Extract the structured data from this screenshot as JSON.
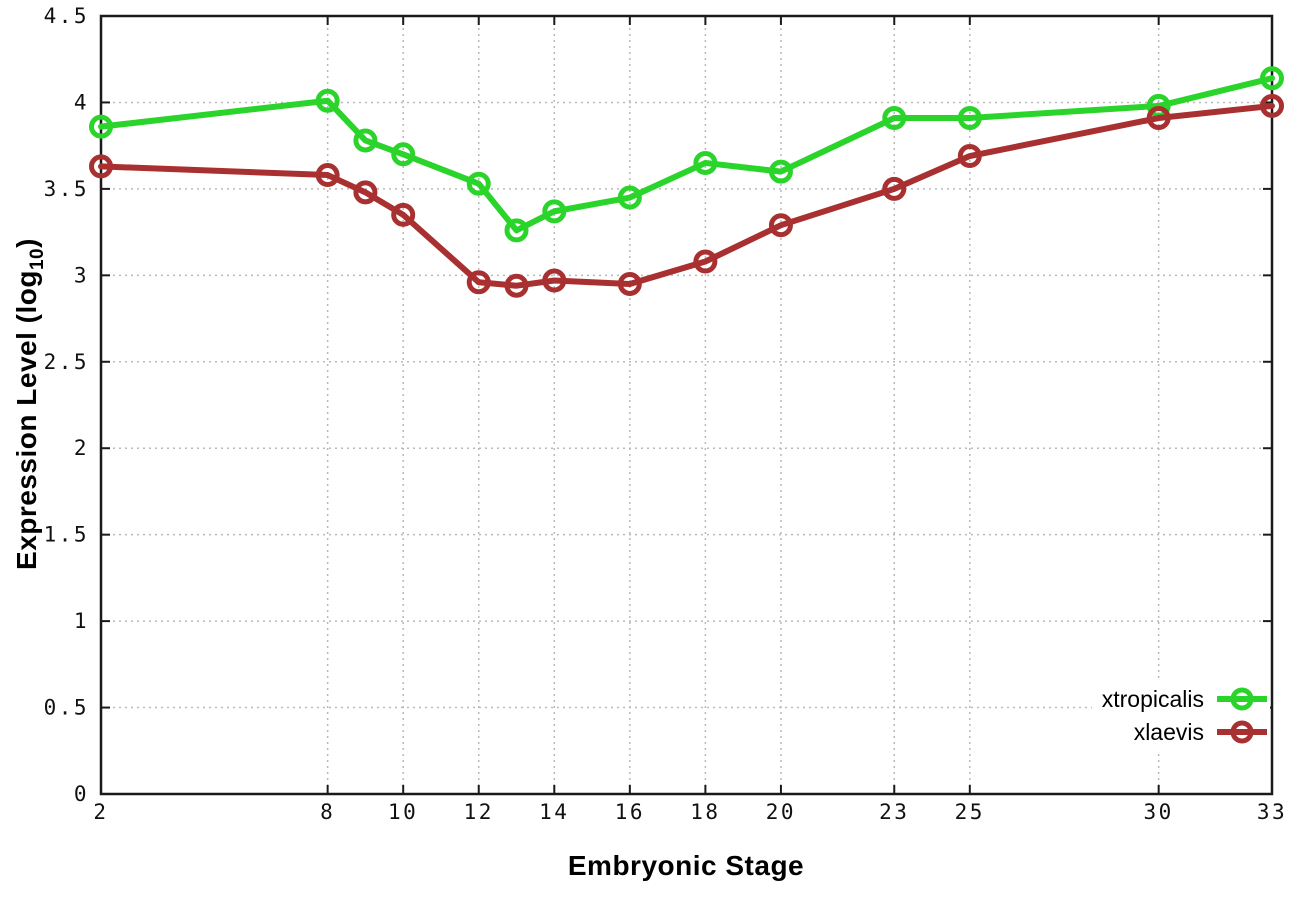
{
  "chart_data": {
    "type": "line",
    "title": "",
    "xlabel": "Embryonic Stage",
    "ylabel": "Expression Level (log10)",
    "ylabel_parts": {
      "base": "Expression Level (log",
      "sub": "10",
      "close": ")"
    },
    "xlim": [
      2,
      33
    ],
    "ylim": [
      0,
      4.5
    ],
    "grid": true,
    "legend_position": "bottom-right",
    "x_ticks": [
      2,
      8,
      10,
      12,
      14,
      16,
      18,
      20,
      23,
      25,
      30,
      33
    ],
    "x_tick_labels": [
      "2",
      "8",
      "10",
      "12",
      "14",
      "16",
      "18",
      "20",
      "23",
      "25",
      "30",
      "33"
    ],
    "y_ticks": [
      0,
      0.5,
      1,
      1.5,
      2,
      2.5,
      3,
      3.5,
      4,
      4.5
    ],
    "y_tick_labels": [
      "0",
      "0.5",
      "1",
      "1.5",
      "2",
      "2.5",
      "3",
      "3.5",
      "4",
      "4.5"
    ],
    "x": [
      2,
      8,
      9,
      10,
      12,
      13,
      14,
      16,
      18,
      20,
      23,
      25,
      30,
      33
    ],
    "series": [
      {
        "name": "xtropicalis",
        "color": "#2ad42a",
        "marker": "open-circle",
        "values": [
          3.86,
          4.01,
          3.78,
          3.7,
          3.53,
          3.26,
          3.37,
          3.45,
          3.65,
          3.6,
          3.91,
          3.91,
          3.98,
          4.14
        ]
      },
      {
        "name": "xlaevis",
        "color": "#a93030",
        "marker": "open-circle",
        "values": [
          3.63,
          3.58,
          3.48,
          3.35,
          2.96,
          2.94,
          2.97,
          2.95,
          3.08,
          3.29,
          3.5,
          3.69,
          3.91,
          3.98
        ]
      }
    ]
  },
  "colors": {
    "background": "#ffffff",
    "axis": "#1a1a1a",
    "grid": "#b9b9b9",
    "tick_text": "#111111"
  }
}
